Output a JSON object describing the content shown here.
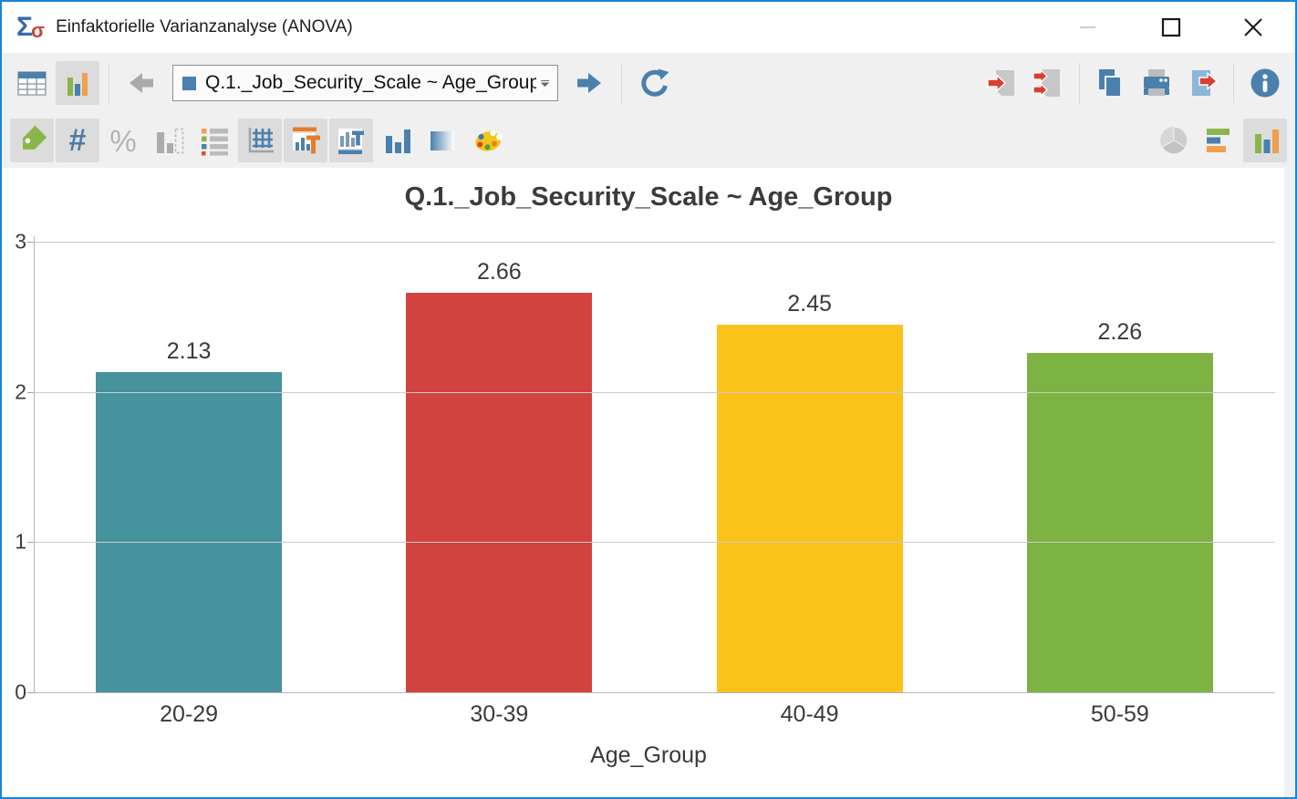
{
  "window": {
    "title": "Einfaktorielle Varianzanalyse (ANOVA)",
    "app_icon": {
      "sigma_big": "Σ",
      "sigma_small": "σ"
    },
    "controls": [
      "minimize-icon",
      "maximize-icon",
      "close-icon"
    ]
  },
  "toolbar_primary": {
    "view_buttons": [
      "table-view",
      "chart-view"
    ],
    "active_view": "chart-view",
    "selector": {
      "value": "Q.1._Job_Security_Scale ~ Age_Group"
    },
    "nav_icons": [
      "back-arrow-icon",
      "forward-arrow-icon",
      "refresh-icon"
    ],
    "right_icons": [
      "export-to-doc-icon",
      "export-all-to-doc-icon",
      "copy-icon",
      "print-icon",
      "export-image-icon",
      "info-icon"
    ]
  },
  "toolbar_secondary": {
    "hash_glyph": "#",
    "percent_glyph": "%",
    "left_icons": [
      "tag-icon",
      "hash-icon",
      "percent-icon",
      "value-bars-icon",
      "legend-icon",
      "grid-icon",
      "chart-title-icon",
      "axis-title-icon",
      "bar-width-icon",
      "gradient-icon",
      "palette-icon"
    ],
    "pressed_buttons": [
      "tag",
      "hash",
      "grid",
      "chart-title",
      "axis-title",
      "chart-type-vertical-bar"
    ],
    "right_icons": [
      "pie-chart-icon",
      "horizontal-bar-icon",
      "vertical-bar-icon"
    ]
  },
  "colors": {
    "window_border": "#1A84D8",
    "toolbar_bg": "#F0F0F0",
    "pressed_bg": "#DCDCDC",
    "accent_blue": "#4A80AD",
    "icon_green": "#8AB54A",
    "icon_orange": "#F0A04C",
    "icon_red": "#D9402E"
  },
  "chart_data": {
    "type": "bar",
    "title": "Q.1._Job_Security_Scale ~ Age_Group",
    "categories": [
      "20-29",
      "30-39",
      "40-49",
      "50-59"
    ],
    "values": [
      2.13,
      2.66,
      2.45,
      2.26
    ],
    "value_labels": [
      "2.13",
      "2.66",
      "2.45",
      "2.26"
    ],
    "bar_colors": [
      "#46929D",
      "#D2423E",
      "#F9C31B",
      "#7CB342"
    ],
    "xlabel": "Age_Group",
    "ylabel": "",
    "ylim": [
      0,
      3
    ],
    "yticks": [
      3,
      2,
      1,
      0
    ],
    "grid": true,
    "legend": false
  }
}
